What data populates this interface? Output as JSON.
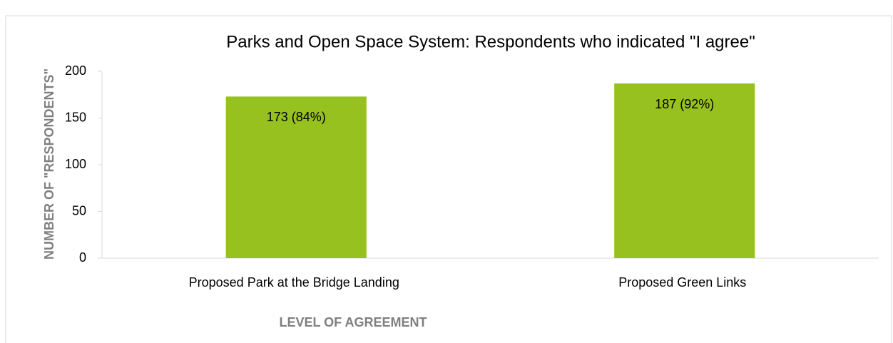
{
  "chart_data": {
    "type": "bar",
    "title": "Parks and Open Space System: Respondents who indicated \"I agree\"",
    "x_label": "LEVEL OF AGREEMENT",
    "y_label": "NUMBER  OF \"RESPONDENTS\"",
    "categories": [
      "Proposed Park at the Bridge Landing",
      "Proposed Green Links"
    ],
    "values": [
      173,
      187
    ],
    "value_labels": [
      "173 (84%)",
      "187 (92%)"
    ],
    "color": "#97c11f",
    "ylim": [
      0,
      200
    ],
    "yticks": [
      0,
      50,
      100,
      150,
      200
    ],
    "grid": false
  }
}
